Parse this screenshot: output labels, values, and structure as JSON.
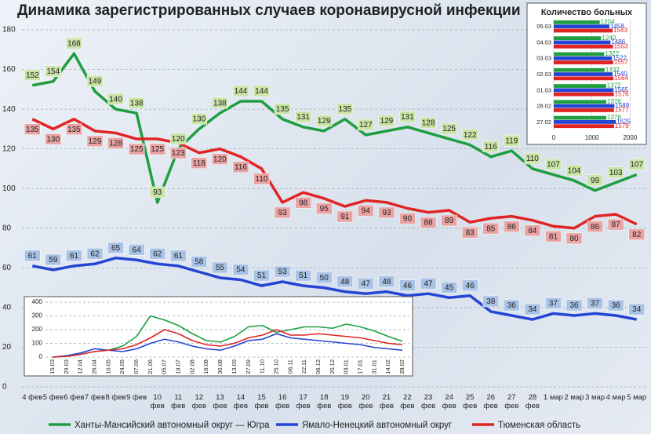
{
  "chart_data": [
    {
      "type": "line",
      "title": "Динамика зарегистрированных случаев коронавирусной инфекции",
      "categories": [
        "4 фев",
        "5 фев",
        "6 фев",
        "7 фев",
        "8 фев",
        "9 фев",
        "10 фев",
        "11 фев",
        "12 фев",
        "13 фев",
        "14 фев",
        "15 фев",
        "16 фев",
        "17 фев",
        "18 фев",
        "19 фев",
        "20 фев",
        "21 фев",
        "22 фев",
        "23 фев",
        "24 фев",
        "25 фев",
        "26 фев",
        "27 фев",
        "28 фев",
        "1 мар",
        "2 мар",
        "3 мар",
        "4 мар",
        "5 мар"
      ],
      "series": [
        {
          "name": "Ханты-Мансийский автономный округ — Югра",
          "color": "#1e9e40",
          "label_fill": "#c9e4a6",
          "values": [
            152,
            154,
            168,
            149,
            140,
            138,
            93,
            120,
            130,
            138,
            144,
            144,
            135,
            131,
            129,
            135,
            127,
            129,
            131,
            128,
            125,
            122,
            116,
            119,
            110,
            107,
            104,
            99,
            103,
            107
          ]
        },
        {
          "name": "Ямало-Ненецкий автономный округ",
          "color": "#2444d4",
          "label_fill": "#a9c3e6",
          "values": [
            61,
            59,
            61,
            62,
            65,
            64,
            62,
            61,
            58,
            55,
            54,
            51,
            53,
            51,
            50,
            48,
            47,
            48,
            46,
            47,
            45,
            46,
            38,
            36,
            34,
            37,
            36,
            37,
            36,
            34
          ]
        },
        {
          "name": "Тюменская область",
          "color": "#e02424",
          "label_fill": "#e9a3a3",
          "values": [
            135,
            130,
            135,
            129,
            128,
            125,
            125,
            123,
            118,
            120,
            116,
            110,
            93,
            98,
            95,
            91,
            94,
            93,
            90,
            88,
            89,
            83,
            85,
            86,
            84,
            81,
            80,
            86,
            87,
            82
          ]
        }
      ],
      "ylim": [
        0,
        180
      ],
      "yticks": [
        0,
        20,
        40,
        60,
        80,
        100,
        120,
        140,
        160,
        180
      ],
      "grid": true,
      "legend": "bottom"
    },
    {
      "type": "bar",
      "orientation": "horizontal",
      "title": "Количество больных",
      "categories": [
        "05.03",
        "04.03",
        "03.03",
        "02.03",
        "01.03",
        "28.02",
        "27.02"
      ],
      "series": [
        {
          "color": "#1e9e40",
          "values": [
            1204,
            1240,
            1322,
            1332,
            1372,
            1376,
            1376
          ]
        },
        {
          "color": "#2444d4",
          "values": [
            1458,
            1486,
            1522,
            1540,
            1565,
            1589,
            1625
          ]
        },
        {
          "color": "#e02424",
          "values": [
            1543,
            1553,
            1557,
            1564,
            1576,
            1577,
            1579
          ]
        }
      ],
      "xlim": [
        0,
        2300
      ],
      "xticks": [
        0,
        1000,
        2000
      ],
      "grid": true
    },
    {
      "type": "line",
      "categories": [
        "15.03",
        "29.03",
        "12.04",
        "26.04",
        "10.05",
        "24.05",
        "07.06",
        "21.06",
        "05.07",
        "19.07",
        "02.08",
        "16.08",
        "30.08",
        "13.09",
        "27.09",
        "11.10",
        "25.10",
        "08.11",
        "22.11",
        "06.12",
        "20.12",
        "03.01",
        "17.01",
        "31.01",
        "14.02",
        "28.02"
      ],
      "series": [
        {
          "color": "#1e9e40",
          "values": [
            0,
            5,
            20,
            40,
            50,
            80,
            150,
            300,
            270,
            230,
            170,
            120,
            110,
            150,
            220,
            230,
            180,
            200,
            220,
            220,
            210,
            240,
            220,
            190,
            150,
            115
          ]
        },
        {
          "color": "#2444d4",
          "values": [
            0,
            10,
            30,
            60,
            50,
            40,
            60,
            100,
            130,
            110,
            80,
            60,
            50,
            80,
            120,
            130,
            170,
            140,
            130,
            120,
            110,
            100,
            90,
            70,
            60,
            50
          ]
        },
        {
          "color": "#e02424",
          "values": [
            0,
            5,
            20,
            40,
            50,
            60,
            90,
            140,
            200,
            170,
            120,
            90,
            80,
            100,
            140,
            160,
            200,
            160,
            160,
            170,
            160,
            150,
            140,
            120,
            100,
            90
          ]
        }
      ],
      "ylim": [
        0,
        400
      ],
      "yticks": [
        0,
        100,
        200,
        300,
        400
      ],
      "grid": true
    }
  ]
}
